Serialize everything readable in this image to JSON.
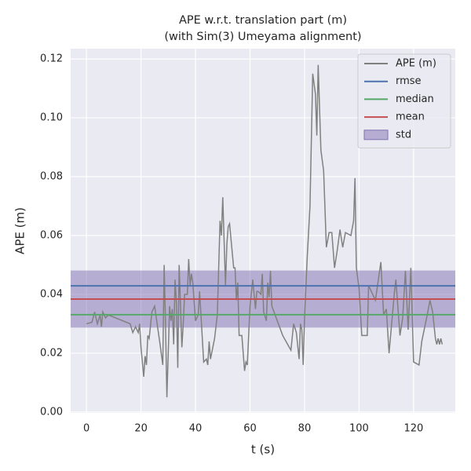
{
  "chart_data": {
    "type": "line",
    "title": "APE w.r.t. translation part (m)",
    "subtitle": "(with Sim(3) Umeyama alignment)",
    "x_label": "t (s)",
    "y_label": "APE (m)",
    "xlim": [
      -5.8,
      135.3
    ],
    "ylim": [
      -0.0003,
      0.1235
    ],
    "xticks": [
      0,
      20,
      40,
      60,
      80,
      100,
      120
    ],
    "yticks": [
      {
        "value": 0,
        "label": "0.00"
      },
      {
        "value": 0.02,
        "label": "0.02"
      },
      {
        "value": 0.04,
        "label": "0.04"
      },
      {
        "value": 0.06,
        "label": "0.06"
      },
      {
        "value": 0.08,
        "label": "0.08"
      },
      {
        "value": 0.1,
        "label": "0.10"
      },
      {
        "value": 0.12,
        "label": "0.12"
      }
    ],
    "grid": true,
    "legend": "upper right",
    "series": [
      {
        "name": "APE (m)",
        "color": "#808080",
        "x": [
          0,
          2,
          3,
          4,
          5,
          5.5,
          6,
          7,
          8,
          16,
          17,
          18,
          19,
          19.5,
          20,
          21,
          21.5,
          22,
          22.5,
          23,
          24,
          25,
          27,
          28,
          28.5,
          29,
          29.5,
          30,
          30.5,
          31,
          31.5,
          32,
          32.5,
          33,
          33.5,
          34,
          35,
          35.5,
          36,
          37,
          37.5,
          38,
          38.5,
          39,
          40,
          41,
          41.5,
          42,
          43,
          44,
          44.5,
          45,
          45.5,
          47,
          48,
          49,
          49.5,
          50,
          51,
          51.5,
          52,
          52.5,
          54,
          54.5,
          55,
          55.5,
          56,
          57,
          58,
          58.5,
          59,
          60,
          61,
          62,
          62.5,
          63,
          64,
          64.5,
          65,
          66,
          66.5,
          67,
          67.5,
          68,
          70,
          72,
          75,
          76,
          77,
          78,
          78.5,
          79,
          79.5,
          80,
          81,
          82,
          83,
          84,
          84.5,
          85,
          86,
          87,
          88,
          89,
          90,
          91,
          92,
          93,
          94,
          95,
          97,
          98,
          98.5,
          99,
          100,
          101,
          103,
          103.5,
          106,
          108,
          109,
          110,
          111,
          113,
          113.5,
          115,
          116,
          117,
          118,
          119,
          120,
          122,
          123,
          125,
          126,
          127,
          128,
          128.5,
          129,
          129.5,
          130,
          130.5
        ],
        "values": [
          0.03,
          0.0305,
          0.034,
          0.03,
          0.033,
          0.029,
          0.034,
          0.032,
          0.033,
          0.03,
          0.027,
          0.029,
          0.027,
          0.03,
          0.022,
          0.012,
          0.019,
          0.016,
          0.026,
          0.025,
          0.034,
          0.036,
          0.023,
          0.016,
          0.05,
          0.03,
          0.005,
          0.02,
          0.036,
          0.031,
          0.035,
          0.023,
          0.045,
          0.037,
          0.015,
          0.05,
          0.022,
          0.03,
          0.04,
          0.04,
          0.052,
          0.043,
          0.047,
          0.044,
          0.031,
          0.033,
          0.041,
          0.033,
          0.017,
          0.018,
          0.016,
          0.024,
          0.018,
          0.025,
          0.033,
          0.065,
          0.06,
          0.073,
          0.043,
          0.057,
          0.063,
          0.064,
          0.049,
          0.049,
          0.038,
          0.044,
          0.026,
          0.026,
          0.014,
          0.017,
          0.016,
          0.036,
          0.045,
          0.035,
          0.041,
          0.041,
          0.04,
          0.047,
          0.034,
          0.031,
          0.044,
          0.039,
          0.048,
          0.036,
          0.031,
          0.026,
          0.021,
          0.03,
          0.027,
          0.018,
          0.03,
          0.028,
          0.016,
          0.032,
          0.053,
          0.07,
          0.115,
          0.108,
          0.094,
          0.118,
          0.089,
          0.082,
          0.056,
          0.061,
          0.061,
          0.049,
          0.055,
          0.062,
          0.056,
          0.061,
          0.06,
          0.065,
          0.0795,
          0.049,
          0.042,
          0.026,
          0.026,
          0.043,
          0.038,
          0.051,
          0.033,
          0.035,
          0.02,
          0.041,
          0.045,
          0.026,
          0.032,
          0.048,
          0.028,
          0.049,
          0.017,
          0.016,
          0.024,
          0.033,
          0.038,
          0.034,
          0.025,
          0.023,
          0.025,
          0.023,
          0.025,
          0.023
        ]
      }
    ],
    "stats": [
      {
        "name": "rmse",
        "color": "#4c72b0",
        "value": 0.0429
      },
      {
        "name": "median",
        "color": "#55a868",
        "value": 0.0331
      },
      {
        "name": "mean",
        "color": "#c44e52",
        "value": 0.0384
      }
    ],
    "std": {
      "name": "std",
      "color": "#8172b2",
      "value": 0.0097
    }
  }
}
